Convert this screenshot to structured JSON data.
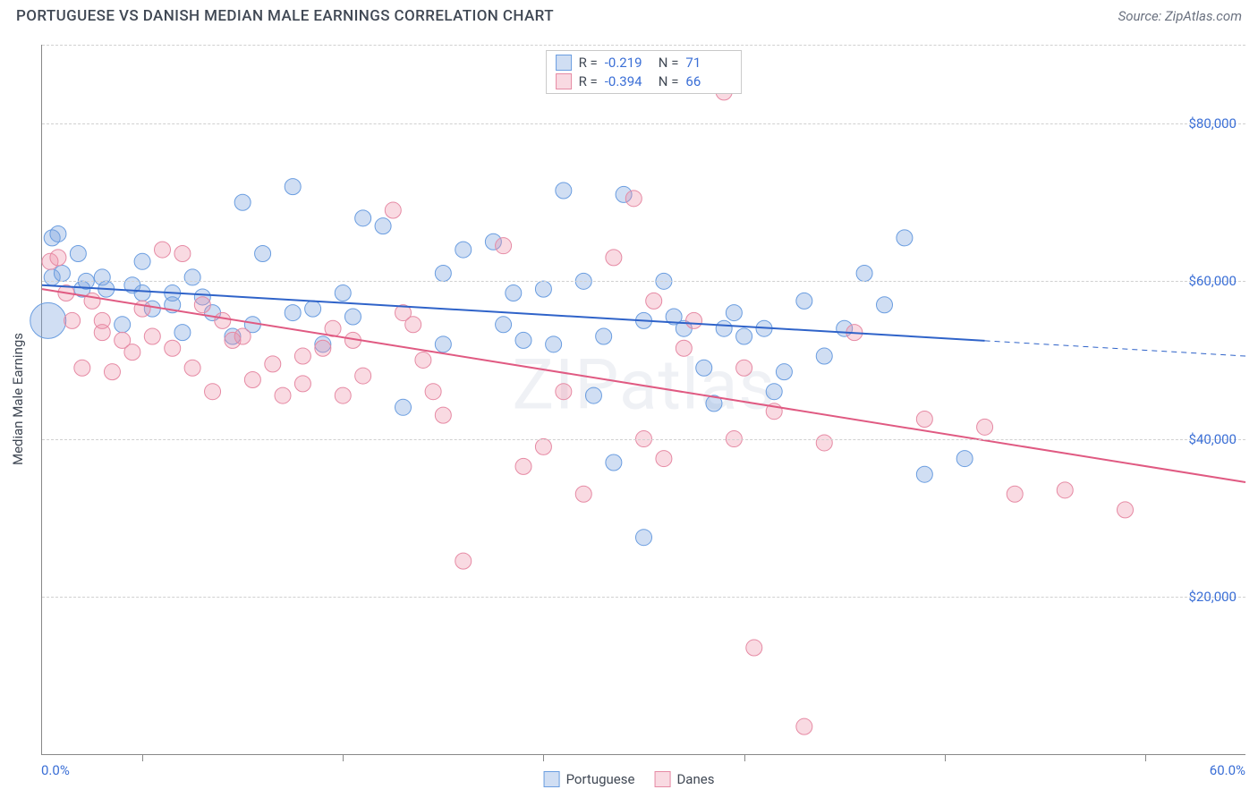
{
  "title": "PORTUGUESE VS DANISH MEDIAN MALE EARNINGS CORRELATION CHART",
  "source": "Source: ZipAtlas.com",
  "watermark": "ZIPatlas",
  "chart": {
    "type": "scatter",
    "background_color": "#ffffff",
    "grid_color": "#d0d0d0",
    "axis_color": "#888888",
    "point_radius": 9,
    "trend_line_width": 2,
    "xlim": [
      0,
      60
    ],
    "ylim": [
      0,
      90000
    ],
    "ytick_values": [
      20000,
      40000,
      60000,
      80000
    ],
    "ytick_labels": [
      "$20,000",
      "$40,000",
      "$60,000",
      "$80,000"
    ],
    "xtick_values": [
      5,
      15,
      25,
      35,
      45,
      55
    ],
    "x_start_label": "0.0%",
    "x_end_label": "60.0%",
    "y_axis_title": "Median Male Earnings",
    "tick_label_color": "#3b6fd6",
    "axis_title_color": "#404854",
    "series": [
      {
        "key": "portuguese",
        "label": "Portuguese",
        "fill": "rgba(120,160,220,0.35)",
        "stroke": "#6a9de0",
        "trend_color": "#2f63c9",
        "r_value": "-0.219",
        "n_value": "71",
        "trend": {
          "x1": 0,
          "y1": 59500,
          "x2": 60,
          "y2": 50500,
          "solid_until_x": 47
        },
        "points": [
          [
            0.5,
            65500
          ],
          [
            0.8,
            66000
          ],
          [
            0.5,
            60500
          ],
          [
            1.0,
            61000
          ],
          [
            0.3,
            55000,
            20
          ],
          [
            2.0,
            59000
          ],
          [
            2.2,
            60000
          ],
          [
            1.8,
            63500
          ],
          [
            3.0,
            60500
          ],
          [
            3.2,
            59000
          ],
          [
            4.0,
            54500
          ],
          [
            4.5,
            59500
          ],
          [
            5.0,
            62500
          ],
          [
            5.5,
            56500
          ],
          [
            5.0,
            58500
          ],
          [
            6.5,
            58500
          ],
          [
            6.5,
            57000
          ],
          [
            7.0,
            53500
          ],
          [
            7.5,
            60500
          ],
          [
            8.0,
            58000
          ],
          [
            8.5,
            56000
          ],
          [
            9.5,
            53000
          ],
          [
            10.0,
            70000
          ],
          [
            10.5,
            54500
          ],
          [
            11.0,
            63500
          ],
          [
            12.5,
            72000
          ],
          [
            12.5,
            56000
          ],
          [
            13.5,
            56500
          ],
          [
            14.0,
            52000
          ],
          [
            15.0,
            58500
          ],
          [
            15.5,
            55500
          ],
          [
            16.0,
            68000
          ],
          [
            17.0,
            67000
          ],
          [
            18.0,
            44000
          ],
          [
            20.0,
            61000
          ],
          [
            20.0,
            52000
          ],
          [
            21.0,
            64000
          ],
          [
            22.5,
            65000
          ],
          [
            23.0,
            54500
          ],
          [
            23.5,
            58500
          ],
          [
            24.0,
            52500
          ],
          [
            25.0,
            59000
          ],
          [
            25.5,
            52000
          ],
          [
            26.0,
            71500
          ],
          [
            27.0,
            60000
          ],
          [
            27.5,
            45500
          ],
          [
            28.0,
            53000
          ],
          [
            28.5,
            37000
          ],
          [
            29.0,
            71000
          ],
          [
            30.0,
            55000
          ],
          [
            30.0,
            27500
          ],
          [
            31.0,
            60000
          ],
          [
            31.5,
            55500
          ],
          [
            32.0,
            54000
          ],
          [
            33.0,
            49000
          ],
          [
            33.5,
            44500
          ],
          [
            34.0,
            54000
          ],
          [
            34.5,
            56000
          ],
          [
            35.0,
            53000
          ],
          [
            36.0,
            54000
          ],
          [
            36.5,
            46000
          ],
          [
            37.0,
            48500
          ],
          [
            38.0,
            57500
          ],
          [
            39.0,
            50500
          ],
          [
            40.0,
            54000
          ],
          [
            41.0,
            61000
          ],
          [
            42.0,
            57000
          ],
          [
            43.0,
            65500
          ],
          [
            44.0,
            35500
          ],
          [
            46.0,
            37500
          ]
        ]
      },
      {
        "key": "danes",
        "label": "Danes",
        "fill": "rgba(235,140,165,0.32)",
        "stroke": "#e68aa4",
        "trend_color": "#e05a82",
        "r_value": "-0.394",
        "n_value": "66",
        "trend": {
          "x1": 0,
          "y1": 59000,
          "x2": 60,
          "y2": 34500,
          "solid_until_x": 60
        },
        "points": [
          [
            0.4,
            62500
          ],
          [
            0.8,
            63000
          ],
          [
            1.2,
            58500
          ],
          [
            1.5,
            55000
          ],
          [
            2.0,
            49000
          ],
          [
            2.5,
            57500
          ],
          [
            3.0,
            53500
          ],
          [
            3.0,
            55000
          ],
          [
            3.5,
            48500
          ],
          [
            4.0,
            52500
          ],
          [
            4.5,
            51000
          ],
          [
            5.0,
            56500
          ],
          [
            5.5,
            53000
          ],
          [
            6.0,
            64000
          ],
          [
            6.5,
            51500
          ],
          [
            7.0,
            63500
          ],
          [
            7.5,
            49000
          ],
          [
            8.0,
            57000
          ],
          [
            8.5,
            46000
          ],
          [
            9.0,
            55000
          ],
          [
            9.5,
            52500
          ],
          [
            10.0,
            53000
          ],
          [
            10.5,
            47500
          ],
          [
            11.5,
            49500
          ],
          [
            12.0,
            45500
          ],
          [
            13.0,
            50500
          ],
          [
            13.0,
            47000
          ],
          [
            14.0,
            51500
          ],
          [
            14.5,
            54000
          ],
          [
            15.0,
            45500
          ],
          [
            15.5,
            52500
          ],
          [
            16.0,
            48000
          ],
          [
            17.5,
            69000
          ],
          [
            18.0,
            56000
          ],
          [
            18.5,
            54500
          ],
          [
            19.0,
            50000
          ],
          [
            19.5,
            46000
          ],
          [
            20.0,
            43000
          ],
          [
            21.0,
            24500
          ],
          [
            23.0,
            64500
          ],
          [
            24.0,
            36500
          ],
          [
            25.0,
            39000
          ],
          [
            26.0,
            46000
          ],
          [
            27.0,
            33000
          ],
          [
            28.5,
            63000
          ],
          [
            29.5,
            70500
          ],
          [
            30.0,
            40000
          ],
          [
            30.5,
            57500
          ],
          [
            31.0,
            37500
          ],
          [
            32.0,
            51500
          ],
          [
            32.5,
            55000
          ],
          [
            34.0,
            84000
          ],
          [
            34.5,
            40000
          ],
          [
            35.0,
            49000
          ],
          [
            35.5,
            13500
          ],
          [
            36.5,
            43500
          ],
          [
            38.0,
            3500
          ],
          [
            39.0,
            39500
          ],
          [
            40.5,
            53500
          ],
          [
            44.0,
            42500
          ],
          [
            47.0,
            41500
          ],
          [
            48.5,
            33000
          ],
          [
            51.0,
            33500
          ],
          [
            54.0,
            31000
          ]
        ]
      }
    ]
  },
  "legend_top": {
    "r_label": "R =",
    "n_label": "N ="
  }
}
